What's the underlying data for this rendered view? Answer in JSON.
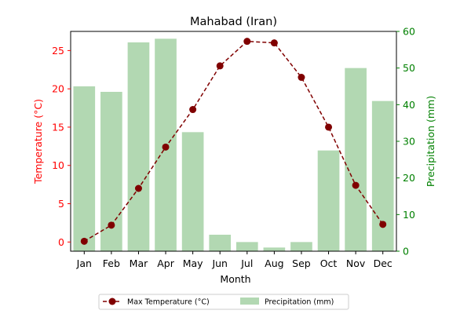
{
  "chart_data": {
    "type": "bar+line",
    "title": "Mahabad (Iran)",
    "xlabel": "Month",
    "ylabel_left": "Temperature (°C)",
    "ylabel_right": "Precipitation (mm)",
    "categories": [
      "Jan",
      "Feb",
      "Mar",
      "Apr",
      "May",
      "Jun",
      "Jul",
      "Aug",
      "Sep",
      "Oct",
      "Nov",
      "Dec"
    ],
    "ylim_left": [
      -1.2,
      27.5
    ],
    "ylim_right": [
      0,
      60
    ],
    "yticks_left": [
      0,
      5,
      10,
      15,
      20,
      25
    ],
    "yticks_right": [
      0,
      10,
      20,
      30,
      40,
      50,
      60
    ],
    "grid": false,
    "legend_position": "bottom-center",
    "series": [
      {
        "name": "Max Temperature (°C)",
        "kind": "line",
        "axis": "left",
        "values": [
          0.1,
          2.2,
          7.0,
          12.4,
          17.3,
          23.0,
          26.2,
          26.0,
          21.5,
          15.0,
          7.4,
          2.3
        ]
      },
      {
        "name": "Precipitation (mm)",
        "kind": "bar",
        "axis": "right",
        "values": [
          45,
          43.5,
          57,
          58,
          32.5,
          4.5,
          2.5,
          1,
          2.5,
          27.5,
          50,
          41
        ]
      }
    ],
    "colors": {
      "line": "#800000",
      "bar": "#b2d8b2",
      "left_axis": "#ff0000",
      "right_axis": "#008000",
      "text": "#000000"
    }
  }
}
